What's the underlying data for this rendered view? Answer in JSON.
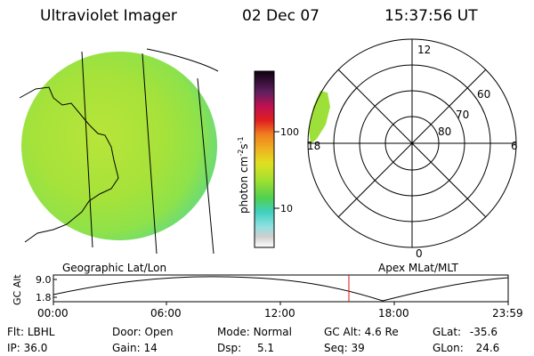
{
  "header": {
    "instrument": "Ultraviolet Imager",
    "date": "02 Dec 07",
    "time": "15:37:56 UT"
  },
  "colorbar": {
    "unit_label": "photon cm",
    "unit_exp1": "-2",
    "unit_mid": "s",
    "unit_exp2": "-1",
    "tick_100": "100",
    "tick_10": "10"
  },
  "polar_plot": {
    "mlt_12": "12",
    "mlt_18": "18",
    "mlt_6": "6",
    "mlt_0": "0",
    "mlat_60": "60",
    "mlat_70": "70",
    "mlat_80": "80"
  },
  "labels": {
    "left_map": "Geographic Lat/Lon",
    "right_map": "Apex MLat/MLT"
  },
  "orbit_plot": {
    "ylabel": "GC Alt",
    "ytick_top": "9.0",
    "ytick_bottom": "1.8",
    "xticks": [
      "00:00",
      "06:00",
      "12:00",
      "18:00",
      "23:59"
    ],
    "marker_color": "#e01010"
  },
  "status": {
    "flt_label": "Flt:",
    "flt_value": "LBHL",
    "ip_label": "IP:",
    "ip_value": "36.0",
    "door_label": "Door:",
    "door_value": "Open",
    "gain_label": "Gain:",
    "gain_value": "14",
    "mode_label": "Mode:",
    "mode_value": "Normal",
    "dsp_label": "Dsp:",
    "dsp_value": "5.1",
    "gcalt_label": "GC Alt:",
    "gcalt_value": "4.6 Re",
    "seq_label": "Seq:",
    "seq_value": "39",
    "glat_label": "GLat:",
    "glat_value": "-35.6",
    "glon_label": "GLon:",
    "glon_value": "24.6"
  },
  "colors": {
    "image_fill": "#a6e23a",
    "axis": "#000000"
  }
}
